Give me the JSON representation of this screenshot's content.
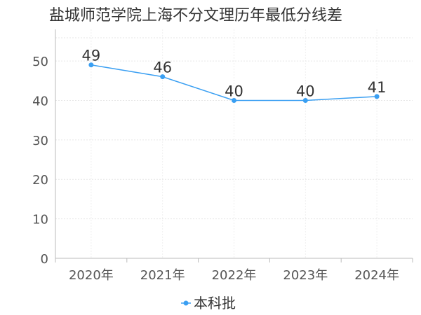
{
  "chart_data": {
    "type": "line",
    "title": "盐城师范学院上海不分文理历年最低分线差",
    "categories": [
      "2020年",
      "2021年",
      "2022年",
      "2023年",
      "2024年"
    ],
    "series": [
      {
        "name": "本科批",
        "values": [
          49,
          46,
          40,
          40,
          41
        ],
        "color": "#3a9ff2"
      }
    ],
    "ylim": [
      0,
      58
    ],
    "yticks": [
      0,
      10,
      20,
      30,
      40,
      50
    ],
    "grid": true,
    "legend_position": "bottom",
    "data_labels": true
  }
}
